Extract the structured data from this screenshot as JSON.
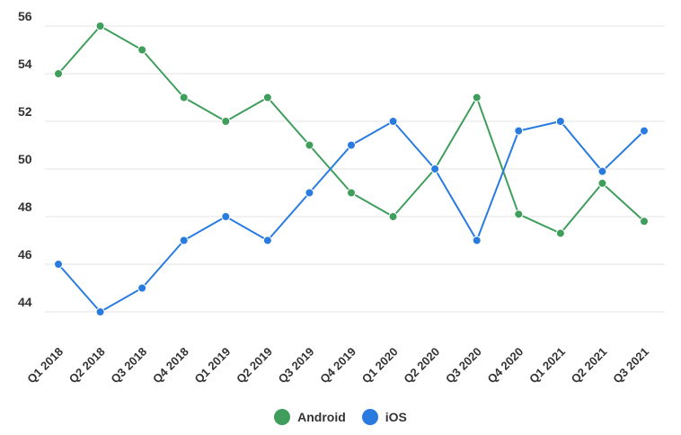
{
  "chart_data": {
    "type": "line",
    "categories": [
      "Q1 2018",
      "Q2 2018",
      "Q3 2018",
      "Q4 2018",
      "Q1 2019",
      "Q2 2019",
      "Q3 2019",
      "Q4 2019",
      "Q1 2020",
      "Q2 2020",
      "Q3 2020",
      "Q4 2020",
      "Q1 2021",
      "Q2 2021",
      "Q3 2021"
    ],
    "series": [
      {
        "name": "Android",
        "color": "#3f9e5c",
        "values": [
          54,
          56,
          55,
          53,
          52,
          53,
          51,
          49,
          48,
          50,
          53,
          48.1,
          47.3,
          49.4,
          47.8
        ]
      },
      {
        "name": "iOS",
        "color": "#2a7be0",
        "values": [
          46,
          44,
          45,
          47,
          48,
          47,
          49,
          51,
          52,
          50,
          47,
          51.6,
          52,
          49.9,
          51.6
        ]
      }
    ],
    "yticks": [
      44,
      46,
      48,
      50,
      52,
      54,
      56
    ],
    "ylim": [
      43,
      57
    ],
    "grid": true,
    "legend_position": "bottom-center"
  }
}
